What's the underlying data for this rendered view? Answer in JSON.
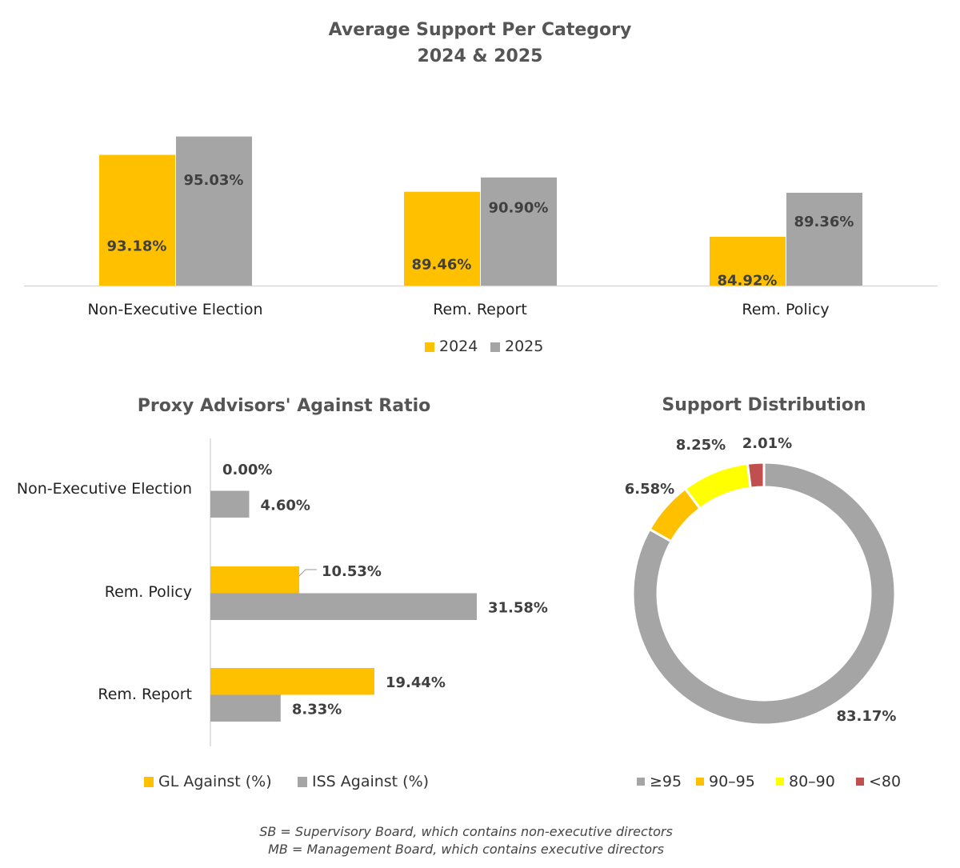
{
  "chart_data": [
    {
      "type": "bar",
      "title": "Average Support Per Category",
      "subtitle": "2024 & 2025",
      "categories": [
        "Non-Executive Election",
        "Rem. Report",
        "Rem. Policy"
      ],
      "series": [
        {
          "name": "2024",
          "color": "#FFC000",
          "values": [
            93.18,
            89.46,
            84.92
          ],
          "labels": [
            "93.18%",
            "89.46%",
            "84.92%"
          ]
        },
        {
          "name": "2025",
          "color": "#A5A5A5",
          "values": [
            95.03,
            90.9,
            89.36
          ],
          "labels": [
            "95.03%",
            "90.90%",
            "89.36%"
          ]
        }
      ],
      "ylim": [
        80,
        100
      ],
      "legend": "bottom"
    },
    {
      "type": "bar",
      "orientation": "horizontal",
      "title": "Proxy Advisors' Against Ratio",
      "categories": [
        "Non-Executive Election",
        "Rem. Policy",
        "Rem. Report"
      ],
      "series": [
        {
          "name": "GL Against (%)",
          "color": "#FFC000",
          "values": [
            0.0,
            10.53,
            19.44
          ],
          "labels": [
            "0.00%",
            "10.53%",
            "19.44%"
          ]
        },
        {
          "name": "ISS Against (%)",
          "color": "#A5A5A5",
          "values": [
            4.6,
            31.58,
            8.33
          ],
          "labels": [
            "4.60%",
            "31.58%",
            "8.33%"
          ]
        }
      ],
      "xlim": [
        0,
        35
      ],
      "legend": "bottom"
    },
    {
      "type": "pie",
      "donut": true,
      "title": "Support Distribution",
      "categories": [
        "≥95",
        "90–95",
        "80–90",
        "<80"
      ],
      "values": [
        83.17,
        6.58,
        8.25,
        2.01
      ],
      "labels": [
        "83.17%",
        "6.58%",
        "8.25%",
        "2.01%"
      ],
      "colors": [
        "#A5A5A5",
        "#FFC000",
        "#FFFF00",
        "#C0504D"
      ],
      "legend": "bottom"
    }
  ],
  "footnotes": [
    "SB = Supervisory Board, which contains non-executive directors",
    "MB = Management Board, which contains executive directors"
  ]
}
